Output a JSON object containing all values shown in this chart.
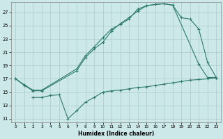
{
  "xlabel": "Humidex (Indice chaleur)",
  "bg_color": "#cce8e8",
  "grid_color": "#aacccc",
  "line_color": "#2d7a6a",
  "ylim": [
    10.5,
    28.5
  ],
  "xlim": [
    -0.5,
    23.5
  ],
  "yticks": [
    11,
    13,
    15,
    17,
    19,
    21,
    23,
    25,
    27
  ],
  "xticks": [
    0,
    1,
    2,
    3,
    4,
    5,
    6,
    7,
    8,
    9,
    10,
    11,
    12,
    13,
    14,
    15,
    16,
    17,
    18,
    19,
    20,
    21,
    22,
    23
  ],
  "line1_x": [
    0,
    1,
    2,
    3,
    7,
    8,
    9,
    10,
    11,
    12,
    13,
    14,
    15,
    16,
    17,
    18,
    21,
    22,
    23
  ],
  "line1_y": [
    17,
    16,
    15.2,
    15.2,
    18.2,
    20.2,
    21.5,
    22.5,
    24.2,
    25.3,
    26.2,
    27.2,
    28.0,
    28.2,
    28.3,
    28.1,
    19.2,
    17.2,
    17.2
  ],
  "line2_x": [
    0,
    1,
    2,
    3,
    7,
    8,
    9,
    10,
    11,
    12,
    13,
    14,
    15,
    16,
    17,
    18,
    19,
    20,
    21,
    22,
    23
  ],
  "line2_y": [
    17,
    16.1,
    15.3,
    15.3,
    18.5,
    20.5,
    21.8,
    23.2,
    24.5,
    25.2,
    26.0,
    27.5,
    28.0,
    28.2,
    28.3,
    28.1,
    26.2,
    26.0,
    24.5,
    19.5,
    17.2
  ],
  "line3_x": [
    2,
    3,
    4,
    5,
    6,
    7,
    8,
    9,
    10,
    11,
    12,
    13,
    14,
    15,
    16,
    17,
    18,
    19,
    20,
    21,
    22,
    23
  ],
  "line3_y": [
    14.2,
    14.2,
    14.5,
    14.6,
    11.0,
    12.2,
    13.5,
    14.2,
    15.0,
    15.2,
    15.3,
    15.5,
    15.7,
    15.8,
    16.0,
    16.2,
    16.4,
    16.6,
    16.8,
    16.9,
    17.0,
    17.2
  ]
}
